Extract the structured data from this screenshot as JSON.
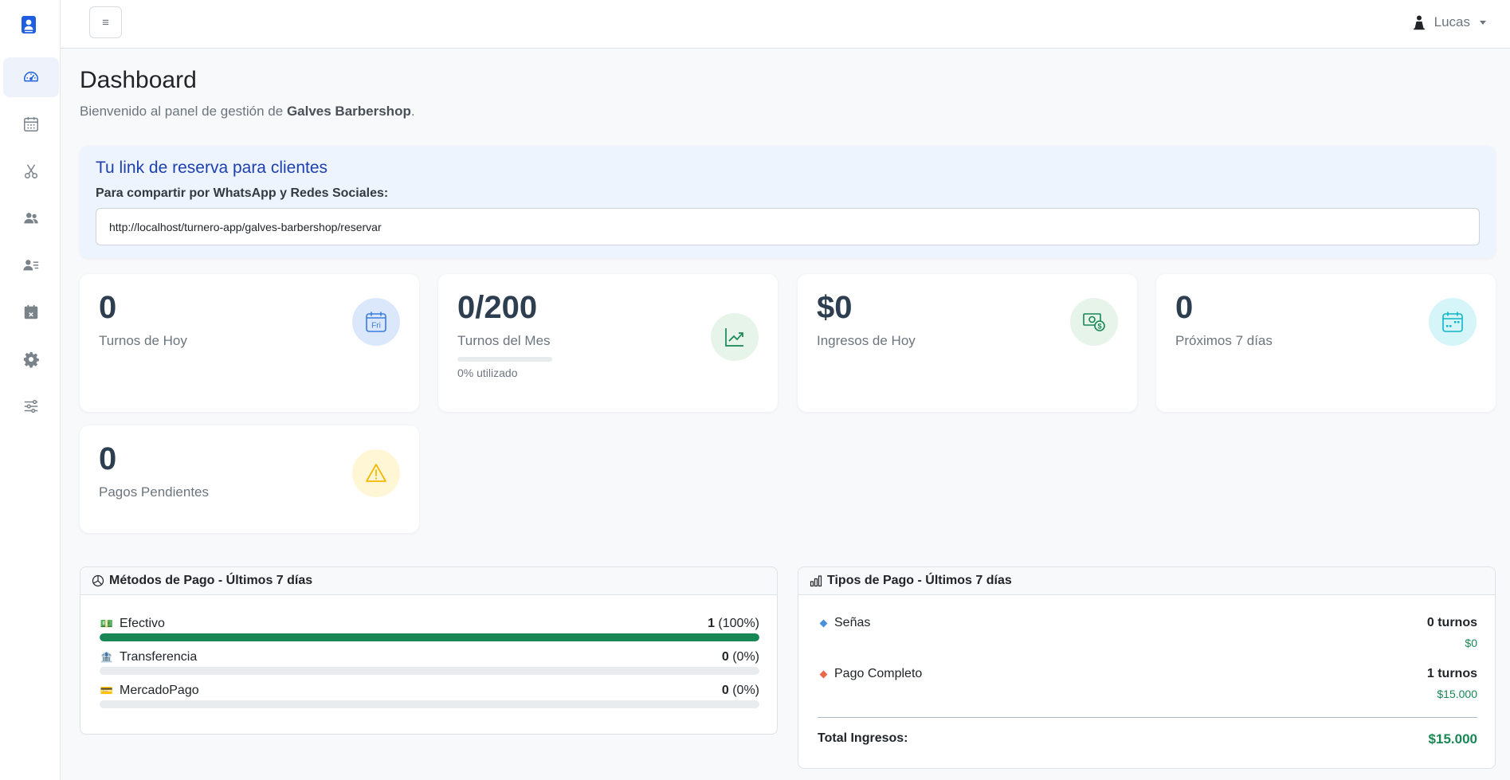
{
  "sidebar": {
    "items": [
      {
        "name": "dashboard",
        "icon": "speedometer-icon",
        "active": true
      },
      {
        "name": "calendar",
        "icon": "calendar-icon",
        "active": false
      },
      {
        "name": "services",
        "icon": "scissors-icon",
        "active": false
      },
      {
        "name": "clients",
        "icon": "people-icon",
        "active": false
      },
      {
        "name": "staff",
        "icon": "person-lines-icon",
        "active": false
      },
      {
        "name": "blocked-days",
        "icon": "calendar-x-icon",
        "active": false
      },
      {
        "name": "settings",
        "icon": "gear-icon",
        "active": false
      },
      {
        "name": "adjustments",
        "icon": "sliders-icon",
        "active": false
      }
    ]
  },
  "topbar": {
    "menu_glyph": "≡",
    "user_name": "Lucas"
  },
  "header": {
    "title": "Dashboard",
    "subtitle_prefix": "Bienvenido al panel de gestión de ",
    "business_name": "Galves Barbershop",
    "subtitle_suffix": "."
  },
  "booking_link": {
    "title": "Tu link de reserva para clientes",
    "label": "Para compartir por WhatsApp y Redes Sociales:",
    "url": "http://localhost/turnero-app/galves-barbershop/reservar"
  },
  "stats": {
    "today": {
      "value": "0",
      "label": "Turnos de Hoy",
      "icon": "calendar-fri-icon",
      "icon_text": "Fri"
    },
    "month": {
      "value": "0/200",
      "label": "Turnos del Mes",
      "progress": 0,
      "progress_note": "0% utilizado",
      "icon": "graph-up-icon"
    },
    "income": {
      "value": "$0",
      "label": "Ingresos de Hoy",
      "icon": "cash-icon"
    },
    "upcoming": {
      "value": "0",
      "label": "Próximos 7 días",
      "icon": "calendar-week-icon"
    },
    "pending": {
      "value": "0",
      "label": "Pagos Pendientes",
      "icon": "warning-icon"
    }
  },
  "payment_methods": {
    "title": "Métodos de Pago - Últimos 7 días",
    "items": [
      {
        "emoji": "💵",
        "label": "Efectivo",
        "count": "1",
        "pct": "(100%)",
        "fraction": 1.0
      },
      {
        "emoji": "🏦",
        "label": "Transferencia",
        "count": "0",
        "pct": "(0%)",
        "fraction": 0
      },
      {
        "emoji": "💳",
        "label": "MercadoPago",
        "count": "0",
        "pct": "(0%)",
        "fraction": 0
      }
    ]
  },
  "payment_types": {
    "title": "Tipos de Pago - Últimos 7 días",
    "items": [
      {
        "label": "Señas",
        "count": "0 turnos",
        "amount": "$0",
        "color": "#4a90d9"
      },
      {
        "label": "Pago Completo",
        "count": "1 turnos",
        "amount": "$15.000",
        "color": "#e8684a"
      }
    ],
    "total_label": "Total Ingresos:",
    "total_amount": "$15.000"
  },
  "colors": {
    "accent": "#1e40af",
    "success": "#198754",
    "warning": "#f5b800"
  }
}
